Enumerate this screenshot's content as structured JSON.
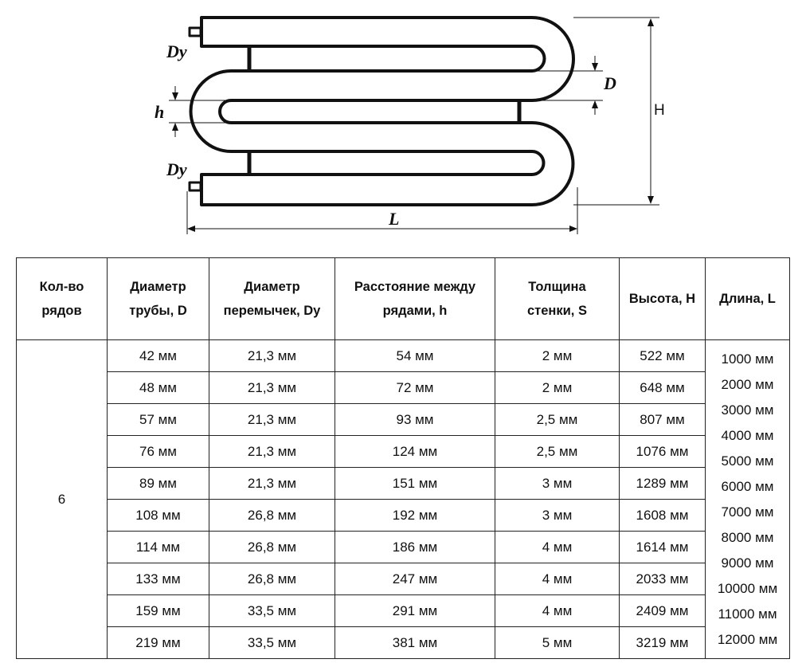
{
  "diagram": {
    "labels": {
      "dy_top": "Dy",
      "dy_bottom": "Dy",
      "d": "D",
      "h": "h",
      "height": "H",
      "length": "L"
    }
  },
  "table": {
    "headers": [
      [
        "Кол-во",
        "рядов"
      ],
      [
        "Диаметр",
        "трубы, D"
      ],
      [
        "Диаметр",
        "перемычек, Dy"
      ],
      [
        "Расстояние между",
        "рядами, h"
      ],
      [
        "Толщина",
        "стенки, S"
      ],
      [
        "Высота, H"
      ],
      [
        "Длина, L"
      ]
    ],
    "rows_count": "6",
    "rows": [
      [
        "42 мм",
        "21,3 мм",
        "54 мм",
        "2 мм",
        "522 мм"
      ],
      [
        "48 мм",
        "21,3 мм",
        "72 мм",
        "2 мм",
        "648 мм"
      ],
      [
        "57 мм",
        "21,3 мм",
        "93 мм",
        "2,5 мм",
        "807 мм"
      ],
      [
        "76 мм",
        "21,3 мм",
        "124 мм",
        "2,5 мм",
        "1076 мм"
      ],
      [
        "89 мм",
        "21,3 мм",
        "151 мм",
        "3 мм",
        "1289 мм"
      ],
      [
        "108 мм",
        "26,8 мм",
        "192 мм",
        "3 мм",
        "1608 мм"
      ],
      [
        "114 мм",
        "26,8 мм",
        "186 мм",
        "4 мм",
        "1614 мм"
      ],
      [
        "133 мм",
        "26,8 мм",
        "247 мм",
        "4 мм",
        "2033 мм"
      ],
      [
        "159 мм",
        "33,5 мм",
        "291 мм",
        "4 мм",
        "2409 мм"
      ],
      [
        "219 мм",
        "33,5 мм",
        "381 мм",
        "5 мм",
        "3219 мм"
      ]
    ],
    "lengths": [
      "1000 мм",
      "2000 мм",
      "3000 мм",
      "4000 мм",
      "5000 мм",
      "6000 мм",
      "7000 мм",
      "8000 мм",
      "9000 мм",
      "10000 мм",
      "11000 мм",
      "12000 мм"
    ]
  }
}
